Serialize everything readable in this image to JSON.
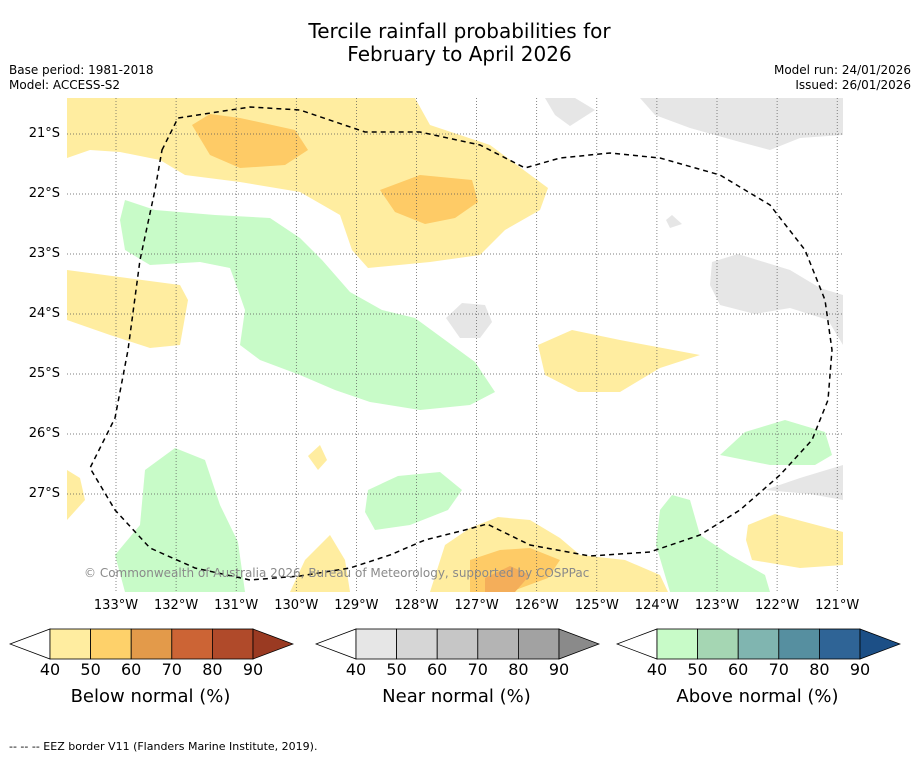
{
  "title_line1": "Tercile rainfall probabilities for",
  "title_line2": "February to April 2026",
  "base_period": "Base period: 1981-2018",
  "model": "Model: ACCESS-S2",
  "model_run": "Model run: 24/01/2026",
  "issued": "Issued: 26/01/2026",
  "lat_labels": [
    "21°S",
    "22°S",
    "23°S",
    "24°S",
    "25°S",
    "26°S",
    "27°S"
  ],
  "lon_labels": [
    "133°W",
    "132°W",
    "131°W",
    "130°W",
    "129°W",
    "128°W",
    "127°W",
    "126°W",
    "125°W",
    "124°W",
    "123°W",
    "122°W",
    "121°W"
  ],
  "copyright": "© Commonwealth of Australia 2026, Bureau of Meteorology, supported by COSPPac",
  "colorbars": [
    {
      "label": "Below normal (%)",
      "ticks": [
        "40",
        "50",
        "60",
        "70",
        "80",
        "90"
      ],
      "colors": [
        "#ffeda0",
        "#fed16a",
        "#e39a4a",
        "#cc6435",
        "#b04a2a",
        "#9a3a22"
      ]
    },
    {
      "label": "Near normal (%)",
      "ticks": [
        "40",
        "50",
        "60",
        "70",
        "80",
        "90"
      ],
      "colors": [
        "#e6e6e6",
        "#d6d6d6",
        "#c6c6c6",
        "#b4b4b4",
        "#a2a2a2",
        "#8a8a8a"
      ]
    },
    {
      "label": "Above normal (%)",
      "ticks": [
        "40",
        "50",
        "60",
        "70",
        "80",
        "90"
      ],
      "colors": [
        "#c8fbc8",
        "#a5d6b3",
        "#80b5b0",
        "#568fa0",
        "#2f6496",
        "#1c4f86"
      ]
    }
  ],
  "footnote": "--  --  -- EEZ border V11 (Flanders Marine Institute, 2019).",
  "colors": {
    "below_40": "#ffeda0",
    "below_50": "#fecb66",
    "below_60": "#f4ae5a",
    "near_40": "#e6e6e6",
    "above_40": "#c8fbc8"
  }
}
